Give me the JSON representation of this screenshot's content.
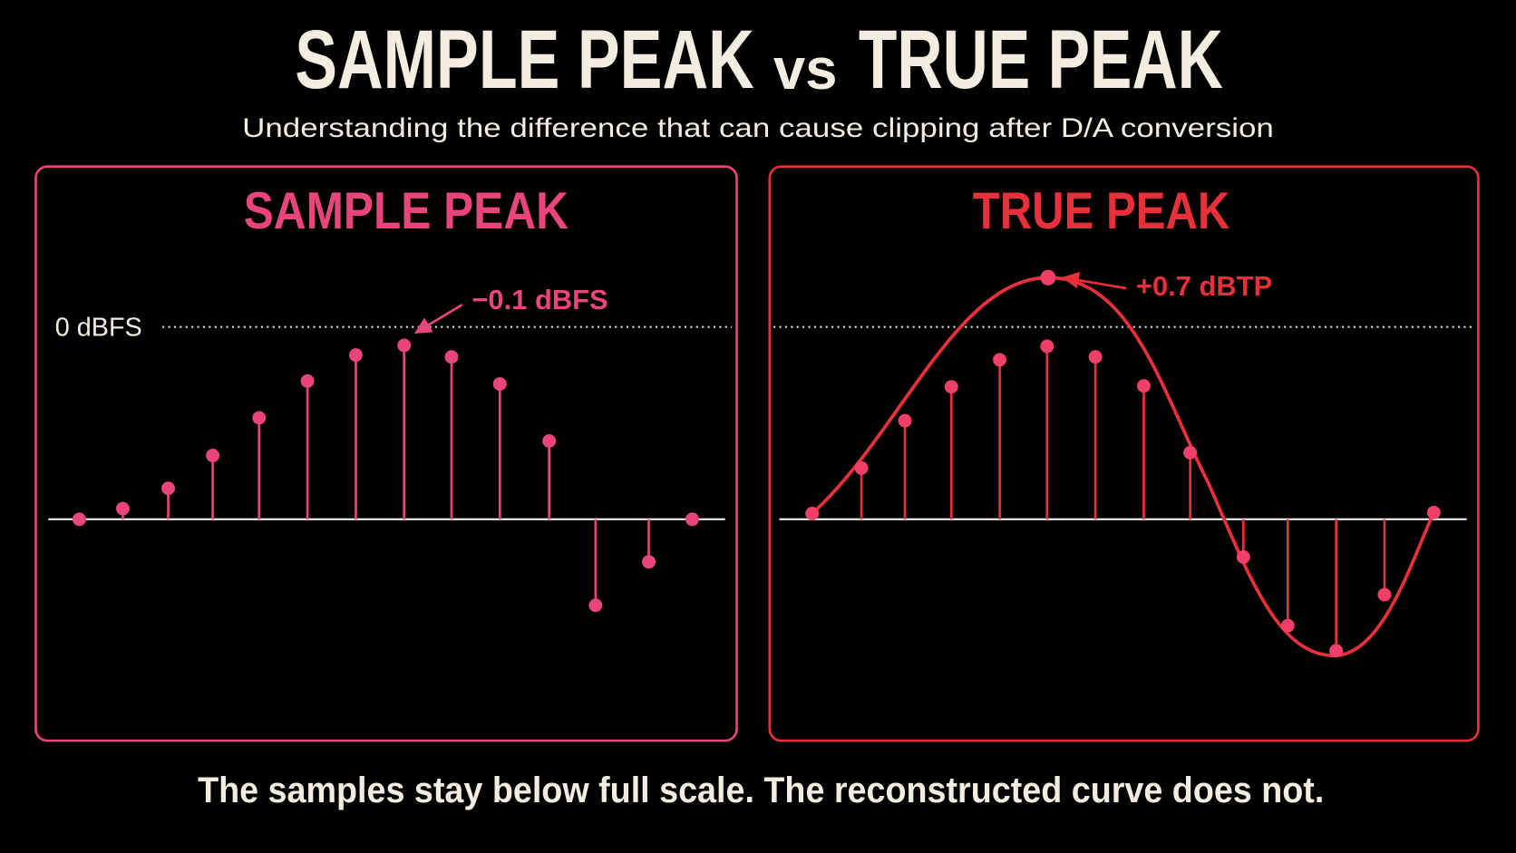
{
  "header": {
    "title_left": "SAMPLE PEAK",
    "title_middle": "vs",
    "title_right": "TRUE PEAK",
    "subtitle": "Understanding the difference that can cause clipping after D/A conversion"
  },
  "panels": [
    {
      "title": "SAMPLE PEAK",
      "reference_label": "0 dBFS",
      "annotation": "−0.1 dBFS"
    },
    {
      "title": "TRUE PEAK",
      "annotation": "+0.7 dBTP"
    }
  ],
  "footer": "The samples stay below full scale. The reconstructed curve does not."
}
